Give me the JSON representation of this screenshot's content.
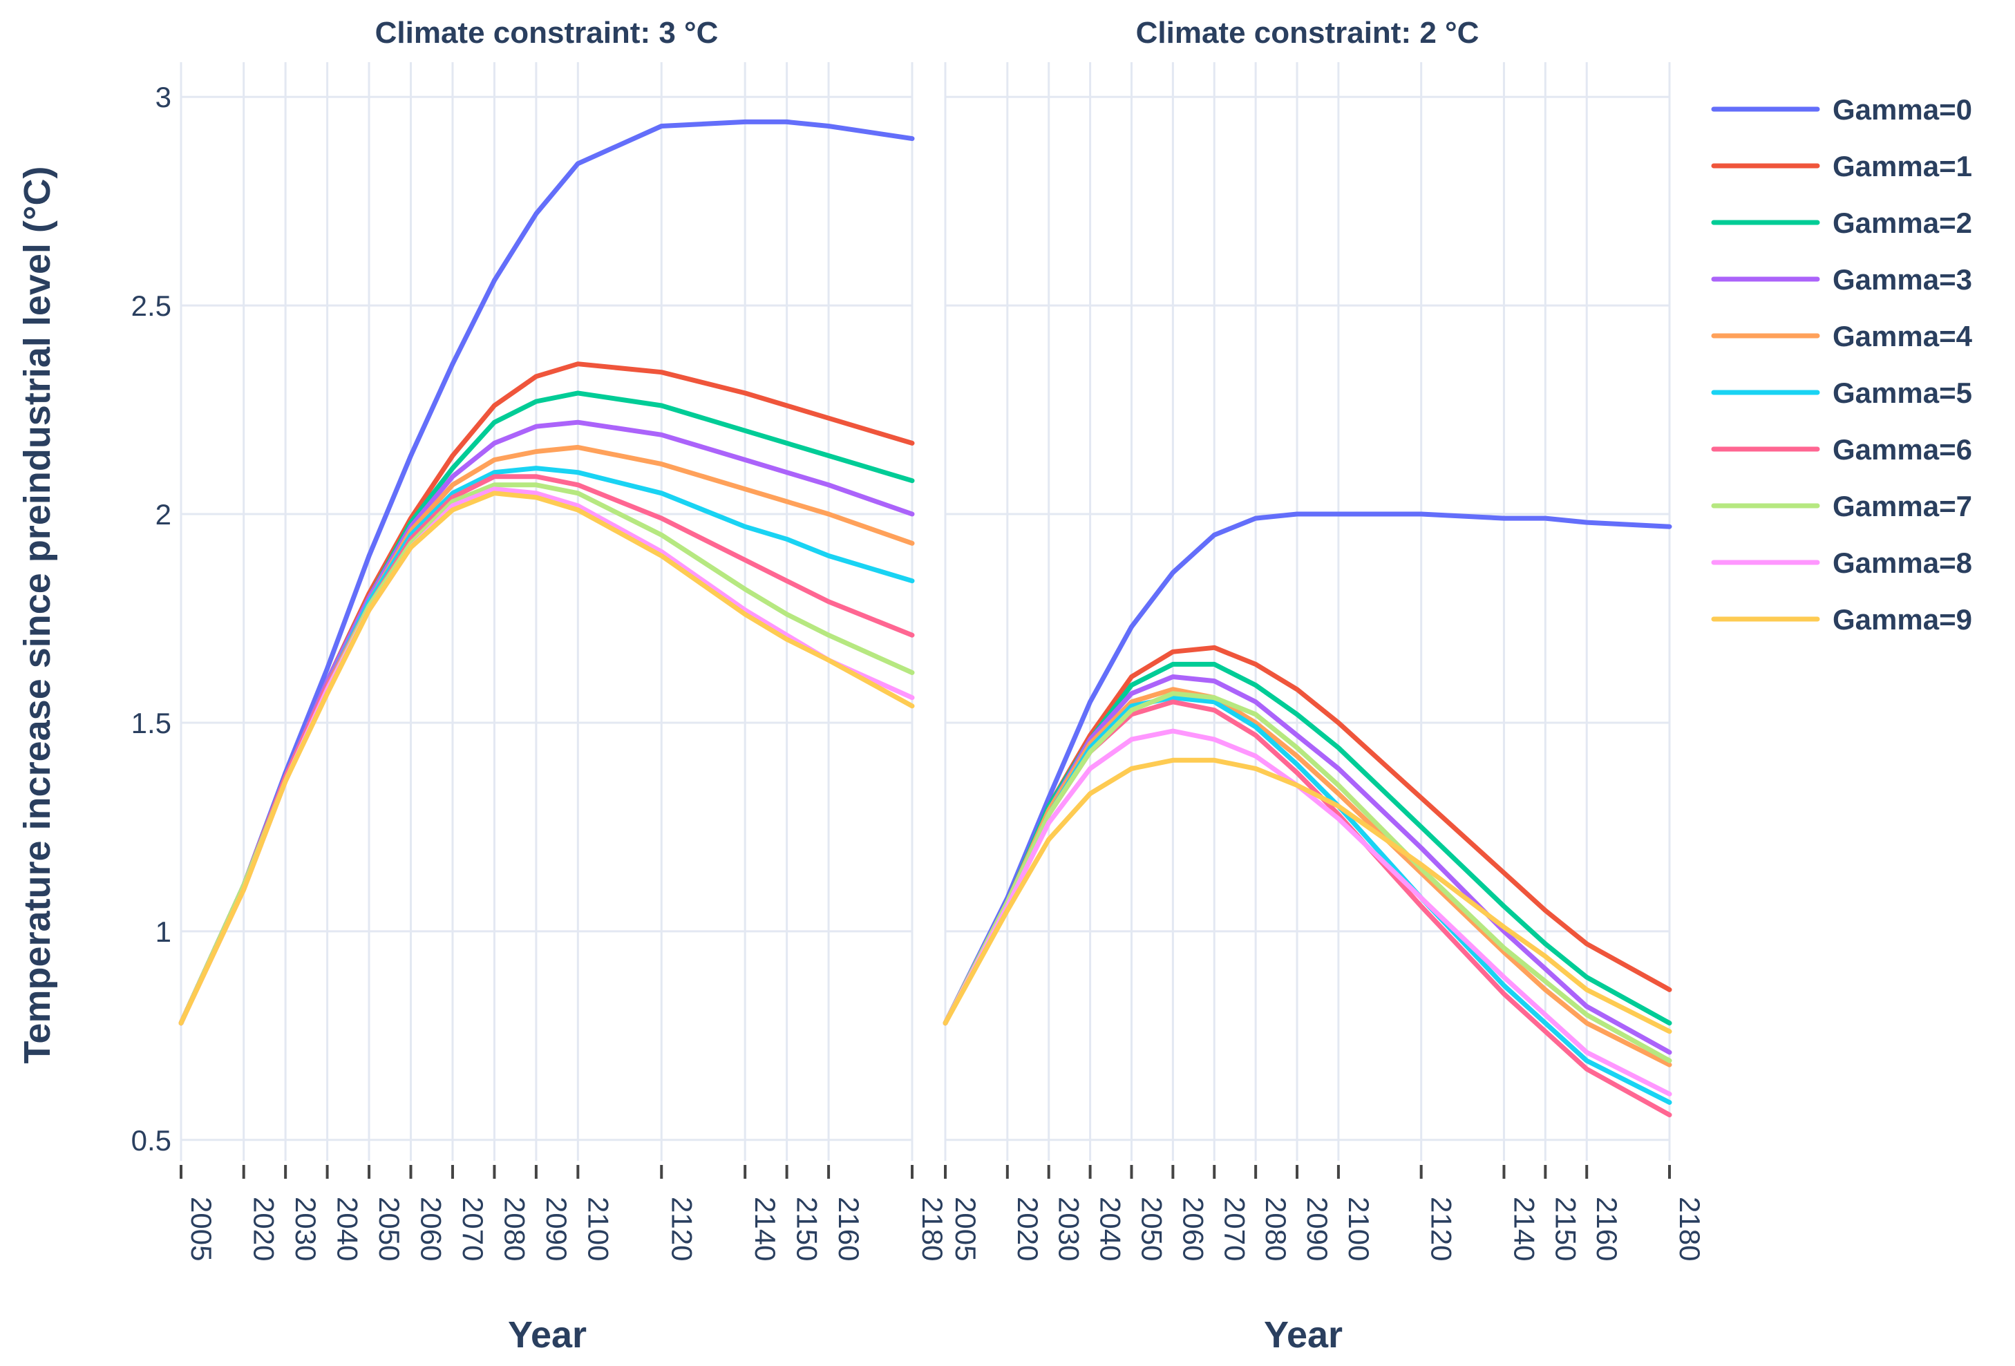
{
  "chart_data": {
    "type": "line",
    "ylabel": "Temperature increase since preindustrial level (°C)",
    "xlabel": "Year",
    "ylim": [
      0.45,
      3.05
    ],
    "yticks": [
      0.5,
      1,
      1.5,
      2,
      2.5,
      3
    ],
    "ytick_labels": [
      "0.5",
      "1",
      "1.5",
      "2",
      "2.5",
      "3"
    ],
    "xlim": [
      2005,
      2180
    ],
    "xticks": [
      2005,
      2020,
      2030,
      2040,
      2050,
      2060,
      2070,
      2080,
      2090,
      2100,
      2120,
      2140,
      2150,
      2160,
      2180
    ],
    "xtick_labels": [
      "2005",
      "2020",
      "2030",
      "2040",
      "2050",
      "2060",
      "2070",
      "2080",
      "2090",
      "2100",
      "2120",
      "2140",
      "2150",
      "2160",
      "2180"
    ],
    "x": [
      2005,
      2020,
      2030,
      2040,
      2050,
      2060,
      2070,
      2080,
      2090,
      2100,
      2120,
      2140,
      2150,
      2160,
      2180
    ],
    "legend_position": "top-right",
    "panels": [
      {
        "title": "Climate constraint: 3 °C",
        "series": [
          {
            "name": "Gamma=0",
            "color": "#636efa",
            "values": [
              0.78,
              1.11,
              1.38,
              1.63,
              1.9,
              2.14,
              2.36,
              2.56,
              2.72,
              2.84,
              2.93,
              2.94,
              2.94,
              2.93,
              2.9
            ]
          },
          {
            "name": "Gamma=1",
            "color": "#ef553b",
            "values": [
              0.78,
              1.11,
              1.37,
              1.6,
              1.81,
              1.99,
              2.14,
              2.26,
              2.33,
              2.36,
              2.34,
              2.29,
              2.26,
              2.23,
              2.17
            ]
          },
          {
            "name": "Gamma=2",
            "color": "#00cc96",
            "values": [
              0.78,
              1.11,
              1.37,
              1.6,
              1.8,
              1.98,
              2.11,
              2.22,
              2.27,
              2.29,
              2.26,
              2.2,
              2.17,
              2.14,
              2.08
            ]
          },
          {
            "name": "Gamma=3",
            "color": "#ab63fa",
            "values": [
              0.78,
              1.11,
              1.37,
              1.6,
              1.8,
              1.97,
              2.09,
              2.17,
              2.21,
              2.22,
              2.19,
              2.13,
              2.1,
              2.07,
              2.0
            ]
          },
          {
            "name": "Gamma=4",
            "color": "#ffa15a",
            "values": [
              0.78,
              1.11,
              1.37,
              1.59,
              1.79,
              1.96,
              2.07,
              2.13,
              2.15,
              2.16,
              2.12,
              2.06,
              2.03,
              2.0,
              1.93
            ]
          },
          {
            "name": "Gamma=5",
            "color": "#19d3f3",
            "values": [
              0.78,
              1.11,
              1.37,
              1.59,
              1.79,
              1.95,
              2.05,
              2.1,
              2.11,
              2.1,
              2.05,
              1.97,
              1.94,
              1.9,
              1.84
            ]
          },
          {
            "name": "Gamma=6",
            "color": "#ff6692",
            "values": [
              0.78,
              1.11,
              1.37,
              1.59,
              1.78,
              1.94,
              2.04,
              2.09,
              2.09,
              2.07,
              1.99,
              1.89,
              1.84,
              1.79,
              1.71
            ]
          },
          {
            "name": "Gamma=7",
            "color": "#b6e880",
            "values": [
              0.78,
              1.11,
              1.36,
              1.58,
              1.78,
              1.93,
              2.03,
              2.07,
              2.07,
              2.05,
              1.95,
              1.82,
              1.76,
              1.71,
              1.62
            ]
          },
          {
            "name": "Gamma=8",
            "color": "#ff97ff",
            "values": [
              0.78,
              1.1,
              1.36,
              1.58,
              1.77,
              1.92,
              2.02,
              2.06,
              2.05,
              2.02,
              1.91,
              1.77,
              1.71,
              1.65,
              1.56
            ]
          },
          {
            "name": "Gamma=9",
            "color": "#fecb52",
            "values": [
              0.78,
              1.1,
              1.36,
              1.57,
              1.77,
              1.92,
              2.01,
              2.05,
              2.04,
              2.01,
              1.9,
              1.76,
              1.7,
              1.65,
              1.54
            ]
          }
        ]
      },
      {
        "title": "Climate constraint: 2 °C",
        "series": [
          {
            "name": "Gamma=0",
            "color": "#636efa",
            "values": [
              0.78,
              1.08,
              1.32,
              1.55,
              1.73,
              1.86,
              1.95,
              1.99,
              2.0,
              2.0,
              2.0,
              1.99,
              1.99,
              1.98,
              1.97
            ]
          },
          {
            "name": "Gamma=1",
            "color": "#ef553b",
            "values": [
              0.78,
              1.07,
              1.3,
              1.47,
              1.61,
              1.67,
              1.68,
              1.64,
              1.58,
              1.5,
              1.32,
              1.14,
              1.05,
              0.97,
              0.86
            ]
          },
          {
            "name": "Gamma=2",
            "color": "#00cc96",
            "values": [
              0.78,
              1.07,
              1.3,
              1.46,
              1.59,
              1.64,
              1.64,
              1.59,
              1.52,
              1.44,
              1.25,
              1.06,
              0.97,
              0.89,
              0.78
            ]
          },
          {
            "name": "Gamma=3",
            "color": "#ab63fa",
            "values": [
              0.78,
              1.07,
              1.29,
              1.46,
              1.57,
              1.61,
              1.6,
              1.55,
              1.47,
              1.39,
              1.2,
              1.0,
              0.91,
              0.82,
              0.71
            ]
          },
          {
            "name": "Gamma=4",
            "color": "#ffa15a",
            "values": [
              0.78,
              1.07,
              1.29,
              1.45,
              1.55,
              1.58,
              1.56,
              1.5,
              1.42,
              1.33,
              1.14,
              0.95,
              0.86,
              0.78,
              0.68
            ]
          },
          {
            "name": "Gamma=5",
            "color": "#19d3f3",
            "values": [
              0.78,
              1.07,
              1.28,
              1.44,
              1.54,
              1.56,
              1.55,
              1.49,
              1.4,
              1.3,
              1.08,
              0.87,
              0.78,
              0.69,
              0.59
            ]
          },
          {
            "name": "Gamma=6",
            "color": "#ff6692",
            "values": [
              0.78,
              1.07,
              1.28,
              1.43,
              1.52,
              1.55,
              1.53,
              1.47,
              1.38,
              1.28,
              1.06,
              0.85,
              0.76,
              0.67,
              0.56
            ]
          },
          {
            "name": "Gamma=7",
            "color": "#b6e880",
            "values": [
              0.78,
              1.07,
              1.28,
              1.43,
              1.53,
              1.57,
              1.56,
              1.52,
              1.44,
              1.35,
              1.15,
              0.96,
              0.88,
              0.8,
              0.69
            ]
          },
          {
            "name": "Gamma=8",
            "color": "#ff97ff",
            "values": [
              0.78,
              1.06,
              1.26,
              1.39,
              1.46,
              1.48,
              1.46,
              1.42,
              1.35,
              1.27,
              1.08,
              0.89,
              0.8,
              0.71,
              0.61
            ]
          },
          {
            "name": "Gamma=9",
            "color": "#fecb52",
            "values": [
              0.78,
              1.05,
              1.22,
              1.33,
              1.39,
              1.41,
              1.41,
              1.39,
              1.35,
              1.3,
              1.16,
              1.01,
              0.94,
              0.86,
              0.76
            ]
          }
        ]
      }
    ]
  }
}
